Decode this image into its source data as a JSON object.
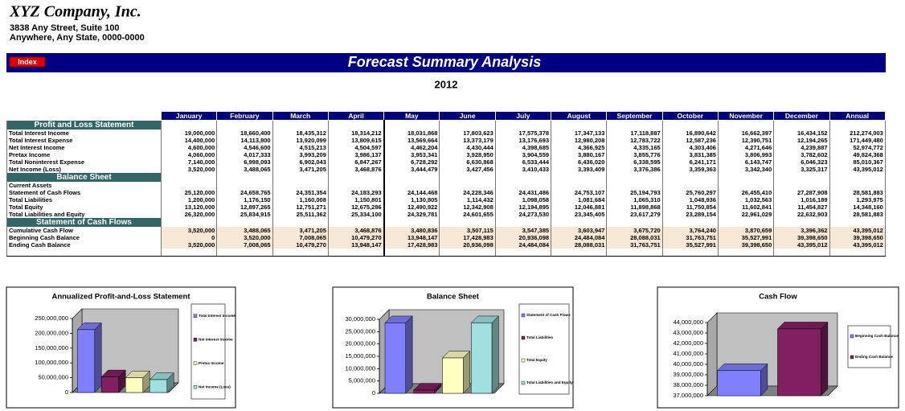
{
  "header": {
    "company": "XYZ Company, Inc.",
    "address1": "3838 Any Street, Suite 100",
    "address2": "Anywhere, Any State, 0000-0000"
  },
  "index_button": "Index",
  "title": "Forecast Summary Analysis",
  "year": "2012",
  "table": {
    "columns": [
      "January",
      "February",
      "March",
      "April",
      "May",
      "June",
      "July",
      "August",
      "September",
      "October",
      "November",
      "December",
      "Annual"
    ],
    "sections": [
      {
        "title": "Profit and Loss Statement",
        "rows": [
          {
            "label": "Total Interest Income",
            "values": [
              "19,000,000",
              "18,660,400",
              "18,435,312",
              "18,314,212",
              "18,031,868",
              "17,803,623",
              "17,575,378",
              "17,347,133",
              "17,118,887",
              "16,890,642",
              "16,662,397",
              "16,434,152",
              "212,274,003"
            ]
          },
          {
            "label": "Total Interest Expense",
            "values": [
              "14,400,000",
              "14,113,800",
              "13,920,099",
              "13,809,615",
              "13,569,664",
              "13,373,179",
              "13,176,693",
              "12,980,208",
              "12,783,722",
              "12,587,236",
              "12,390,751",
              "12,194,265",
              "171,449,480"
            ]
          },
          {
            "label": "Net Interest Income",
            "values": [
              "4,600,000",
              "4,546,600",
              "4,515,213",
              "4,504,597",
              "4,462,204",
              "4,430,444",
              "4,398,685",
              "4,366,925",
              "4,335,165",
              "4,303,406",
              "4,271,646",
              "4,239,887",
              "52,974,772"
            ]
          },
          {
            "label": "Pretax Income",
            "values": [
              "4,060,000",
              "4,017,333",
              "3,993,209",
              "3,986,137",
              "3,953,341",
              "3,928,950",
              "3,904,559",
              "3,880,167",
              "3,855,776",
              "3,831,385",
              "3,806,993",
              "3,782,602",
              "49,824,368"
            ]
          },
          {
            "label": "Total Noninterest Expense",
            "values": [
              "7,140,000",
              "6,998,093",
              "6,902,043",
              "6,847,267",
              "6,728,292",
              "6,630,868",
              "6,533,444",
              "6,436,020",
              "6,338,595",
              "6,241,171",
              "6,143,747",
              "6,046,323",
              "85,010,367"
            ]
          },
          {
            "label": "Net Income (Loss)",
            "values": [
              "3,520,000",
              "3,488,065",
              "3,471,205",
              "3,468,876",
              "3,444,479",
              "3,427,456",
              "3,410,433",
              "3,393,409",
              "3,376,386",
              "3,359,363",
              "3,342,340",
              "3,325,317",
              "43,395,012"
            ]
          }
        ]
      },
      {
        "title": "Balance Sheet",
        "rows": [
          {
            "label": "Current Assets",
            "values": []
          },
          {
            "label": "Statement of Cash Flows",
            "values": [
              "25,120,000",
              "24,658,765",
              "24,351,354",
              "24,183,293",
              "24,144,468",
              "24,228,346",
              "24,431,486",
              "24,753,107",
              "25,194,793",
              "25,760,297",
              "26,455,410",
              "27,287,908",
              "28,581,883"
            ]
          },
          {
            "label": "Total Liabilities",
            "values": [
              "1,200,000",
              "1,176,150",
              "1,160,008",
              "1,150,801",
              "1,130,805",
              "1,114,432",
              "1,098,058",
              "1,081,684",
              "1,065,310",
              "1,048,936",
              "1,032,563",
              "1,016,189",
              "1,293,975"
            ]
          },
          {
            "label": "Total Equity",
            "values": [
              "13,120,000",
              "12,897,265",
              "12,751,271",
              "12,675,286",
              "12,490,922",
              "12,342,908",
              "12,194,895",
              "12,046,881",
              "11,898,868",
              "11,750,854",
              "11,602,841",
              "11,454,827",
              "14,348,160"
            ]
          },
          {
            "label": "Total Liabilities and Equity",
            "values": [
              "26,320,000",
              "25,834,915",
              "25,511,362",
              "25,334,100",
              "24,329,781",
              "24,601,655",
              "24,273,530",
              "23,345,405",
              "23,617,279",
              "23,289,154",
              "22,961,029",
              "22,632,903",
              "28,581,883"
            ]
          }
        ]
      },
      {
        "title": "Statement of Cash Flows",
        "rows": [
          {
            "label": "Cumulative Cash Flow",
            "values": [
              "3,520,000",
              "3,488,065",
              "3,471,205",
              "3,468,876",
              "3,480,836",
              "3,507,115",
              "3,547,385",
              "3,603,947",
              "3,675,720",
              "3,764,240",
              "3,870,659",
              "3,396,362",
              "43,395,012"
            ]
          },
          {
            "label": "Beginning Cash Balance",
            "values": [
              "0",
              "3,520,000",
              "7,008,065",
              "10,479,270",
              "13,948,147",
              "17,428,983",
              "20,936,098",
              "24,484,084",
              "28,088,031",
              "31,763,751",
              "35,527,991",
              "39,398,650",
              "39,398,650"
            ]
          },
          {
            "label": "Ending Cash Balance",
            "values": [
              "3,520,000",
              "7,008,065",
              "10,479,270",
              "13,948,147",
              "17,428,983",
              "20,936,098",
              "24,484,084",
              "28,088,031",
              "31,763,751",
              "35,527,991",
              "39,398,650",
              "43,395,012",
              "43,395,012"
            ]
          }
        ]
      }
    ]
  },
  "chart_data": [
    {
      "type": "bar",
      "title": "Annualized Profit-and-Loss Statement",
      "ylim": [
        0,
        250000000
      ],
      "yticks": [
        0,
        {
          "value": 50000000,
          "label": "50,000,000"
        },
        {
          "value": 100000000,
          "label": "100,000,000"
        },
        {
          "value": 150000000,
          "label": "150,000,000"
        },
        {
          "value": 200000000,
          "label": "200,000,000"
        },
        {
          "value": 250000000,
          "label": "250,000,000"
        }
      ],
      "grid": false,
      "legend": "right",
      "series": [
        {
          "name": "Total Interest Income",
          "color": "#8080ff",
          "values": [
            212274003
          ]
        },
        {
          "name": "Net Interest Income",
          "color": "#802060",
          "values": [
            52974772
          ]
        },
        {
          "name": "Pretax Income",
          "color": "#ffffc0",
          "values": [
            49824368
          ]
        },
        {
          "name": "Net Income (Loss)",
          "color": "#a0e0e0",
          "values": [
            43395012
          ]
        }
      ]
    },
    {
      "type": "bar",
      "title": "Balance Sheet",
      "ylim": [
        0,
        30000000
      ],
      "yticks": [
        0,
        {
          "value": 5000000,
          "label": "5,000,000"
        },
        {
          "value": 10000000,
          "label": "10,000,000"
        },
        {
          "value": 15000000,
          "label": "15,000,000"
        },
        {
          "value": 20000000,
          "label": "20,000,000"
        },
        {
          "value": 25000000,
          "label": "25,000,000"
        },
        {
          "value": 30000000,
          "label": "30,000,000"
        }
      ],
      "grid": false,
      "legend": "right",
      "series": [
        {
          "name": "Statement of Cash Flows",
          "color": "#8080ff",
          "values": [
            28581883
          ]
        },
        {
          "name": "Total Liabilities",
          "color": "#802060",
          "values": [
            1293975
          ]
        },
        {
          "name": "Total Equity",
          "color": "#ffffc0",
          "values": [
            14348160
          ]
        },
        {
          "name": "Total Liabilities and Equity",
          "color": "#a0e0e0",
          "values": [
            28581883
          ]
        }
      ]
    },
    {
      "type": "bar",
      "title": "Cash Flow",
      "ylim": [
        37000000,
        44000000
      ],
      "yticks": [
        {
          "value": 37000000,
          "label": "37,000,000"
        },
        {
          "value": 38000000,
          "label": "38,000,000"
        },
        {
          "value": 39000000,
          "label": "39,000,000"
        },
        {
          "value": 40000000,
          "label": "40,000,000"
        },
        {
          "value": 41000000,
          "label": "41,000,000"
        },
        {
          "value": 42000000,
          "label": "42,000,000"
        },
        {
          "value": 43000000,
          "label": "43,000,000"
        },
        {
          "value": 44000000,
          "label": "44,000,000"
        }
      ],
      "grid": false,
      "legend": "right",
      "series": [
        {
          "name": "Beginning Cash Balance",
          "color": "#8080ff",
          "values": [
            39398650
          ]
        },
        {
          "name": "Ending Cash Balance",
          "color": "#802060",
          "values": [
            43395012
          ]
        }
      ]
    }
  ]
}
